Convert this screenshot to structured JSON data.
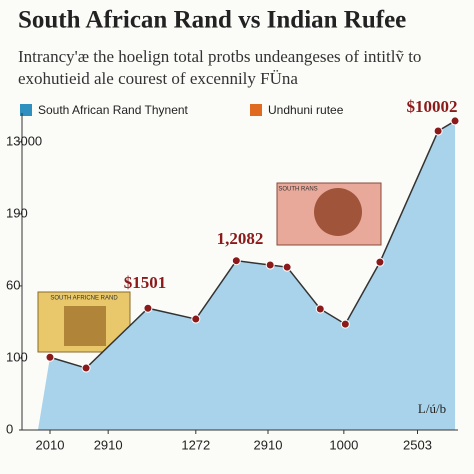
{
  "chart_data": {
    "type": "area",
    "title": "South African Rand vs Indian Rufee",
    "subtitle": [
      "Intrancy'æ the hoelign total protbs undeangeses of intitlṽ to",
      "exohutieid ale courest of excennily FÜna"
    ],
    "series": [
      {
        "name": "South African Rand Thynent",
        "color": "#2f8fbf",
        "x": [
          0,
          0.49,
          1.33,
          1.98,
          2.53,
          2.99,
          3.22,
          3.67,
          4.01,
          4.48,
          5.27,
          5.5
        ],
        "values": [
          1.01,
          0.86,
          1.69,
          1.54,
          2.35,
          2.29,
          2.26,
          1.68,
          1.47,
          2.33,
          4.15,
          4.29
        ]
      },
      {
        "name": "Undhuni rutee",
        "color": "#e06a1f"
      }
    ],
    "xlim": [
      -0.38,
      5.54
    ],
    "xticks": [
      {
        "value": 0,
        "label": "2010"
      },
      {
        "value": 0.79,
        "label": "2910"
      },
      {
        "value": 1.98,
        "label": "1272"
      },
      {
        "value": 2.96,
        "label": "2910"
      },
      {
        "value": 3.99,
        "label": "1000"
      },
      {
        "value": 4.99,
        "label": "2503"
      }
    ],
    "ylim": [
      0,
      4.4
    ],
    "yticks": [
      {
        "value": 0,
        "label": "0"
      },
      {
        "value": 1,
        "label": "100"
      },
      {
        "value": 2,
        "label": "60"
      },
      {
        "value": 3,
        "label": "190"
      },
      {
        "value": 4,
        "label": "13000"
      }
    ],
    "annotations": [
      "$1501",
      "1,2082",
      "$10002",
      "L/ú/b"
    ],
    "notes": [
      "SOUTH AFRICNE RAND",
      "SOUTH RANS"
    ]
  }
}
